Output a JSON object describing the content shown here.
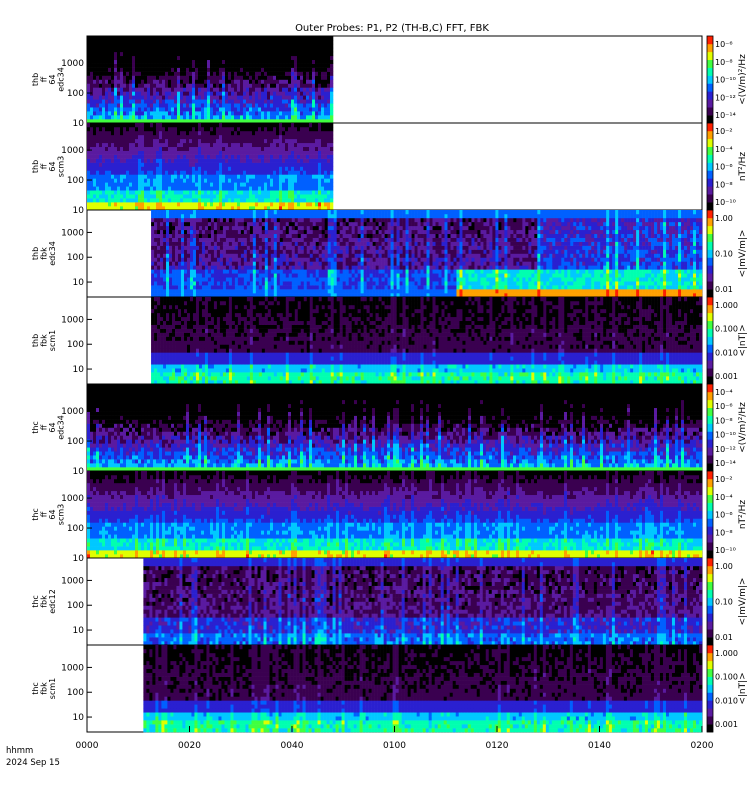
{
  "chart_data": {
    "type": "heatmap",
    "title": "Outer Probes: P1, P2 (TH-B,C) FFT, FBK",
    "x_ticks": [
      "0000",
      "0020",
      "0040",
      "0100",
      "0120",
      "0140",
      "0200"
    ],
    "x_range_minutes": [
      0,
      120
    ],
    "footer": [
      "hhmm",
      "2024 Sep 15"
    ],
    "colormap": [
      "#000000",
      "#3a0050",
      "#5a1aa0",
      "#2a20d0",
      "#0060ff",
      "#00c8ff",
      "#00ffb0",
      "#40ff40",
      "#e0ff00",
      "#ffa000",
      "#ff2000"
    ],
    "panels": [
      {
        "ylabel": [
          "thb",
          "ff",
          "64",
          "edc34"
        ],
        "yticks": [
          "1000",
          "100",
          "10"
        ],
        "y_log_range": [
          10,
          8000
        ],
        "data_minutes": [
          0,
          48
        ],
        "colorbar": {
          "label": "<(V/m)²/Hz",
          "ticks": [
            "10⁻⁶",
            "10⁻⁸",
            "10⁻¹⁰",
            "10⁻¹²",
            "10⁻¹⁴"
          ]
        },
        "pattern": "efield_ff"
      },
      {
        "ylabel": [
          "thb",
          "ff",
          "64",
          "scm3"
        ],
        "yticks": [
          "1000",
          "100",
          "10"
        ],
        "y_log_range": [
          10,
          8000
        ],
        "data_minutes": [
          0,
          48
        ],
        "colorbar": {
          "label": "nT²/Hz",
          "ticks": [
            "10⁻²",
            "10⁻⁴",
            "10⁻⁶",
            "10⁻⁸",
            "10⁻¹⁰"
          ]
        },
        "pattern": "scm_ff"
      },
      {
        "ylabel": [
          "thb",
          "fbk",
          "edc34"
        ],
        "yticks": [
          "1000",
          "100",
          "10"
        ],
        "y_log_range": [
          2.5,
          8000
        ],
        "data_minutes": [
          12.5,
          120
        ],
        "colorbar": {
          "label": "<|mV/m|>",
          "ticks": [
            "1.00",
            "0.10",
            "0.01"
          ]
        },
        "pattern": "efield_fbk"
      },
      {
        "ylabel": [
          "thb",
          "fbk",
          "scm1"
        ],
        "yticks": [
          "1000",
          "100",
          "10"
        ],
        "y_log_range": [
          2.5,
          8000
        ],
        "data_minutes": [
          12.5,
          120
        ],
        "colorbar": {
          "label": "<|nT|>",
          "ticks": [
            "1.000",
            "0.100",
            "0.010",
            "0.001"
          ]
        },
        "pattern": "scm_fbk"
      },
      {
        "ylabel": [
          "thc",
          "ff",
          "64",
          "edc34"
        ],
        "yticks": [
          "1000",
          "100",
          "10"
        ],
        "y_log_range": [
          10,
          8000
        ],
        "data_minutes": [
          0,
          120
        ],
        "colorbar": {
          "label": "<(V/m)²/Hz",
          "ticks": [
            "10⁻⁴",
            "10⁻⁶",
            "10⁻⁸",
            "10⁻¹⁰",
            "10⁻¹²",
            "10⁻¹⁴"
          ]
        },
        "pattern": "efield_ff"
      },
      {
        "ylabel": [
          "thc",
          "ff",
          "64",
          "scm3"
        ],
        "yticks": [
          "1000",
          "100",
          "10"
        ],
        "y_log_range": [
          10,
          8000
        ],
        "data_minutes": [
          0,
          120
        ],
        "colorbar": {
          "label": "nT²/Hz",
          "ticks": [
            "10⁻²",
            "10⁻⁴",
            "10⁻⁶",
            "10⁻⁸",
            "10⁻¹⁰"
          ]
        },
        "pattern": "scm_ff"
      },
      {
        "ylabel": [
          "thc",
          "fbk",
          "edc12"
        ],
        "yticks": [
          "1000",
          "100",
          "10"
        ],
        "y_log_range": [
          2.5,
          8000
        ],
        "data_minutes": [
          11,
          120
        ],
        "colorbar": {
          "label": "<|mV/m|>",
          "ticks": [
            "1.00",
            "0.10",
            "0.01"
          ]
        },
        "pattern": "efield_fbk2"
      },
      {
        "ylabel": [
          "thc",
          "fbk",
          "scm1"
        ],
        "yticks": [
          "1000",
          "100",
          "10"
        ],
        "y_log_range": [
          2.5,
          8000
        ],
        "data_minutes": [
          11,
          120
        ],
        "colorbar": {
          "label": "<|nT|>",
          "ticks": [
            "1.000",
            "0.100",
            "0.010",
            "0.001"
          ]
        },
        "pattern": "scm_fbk"
      }
    ]
  }
}
